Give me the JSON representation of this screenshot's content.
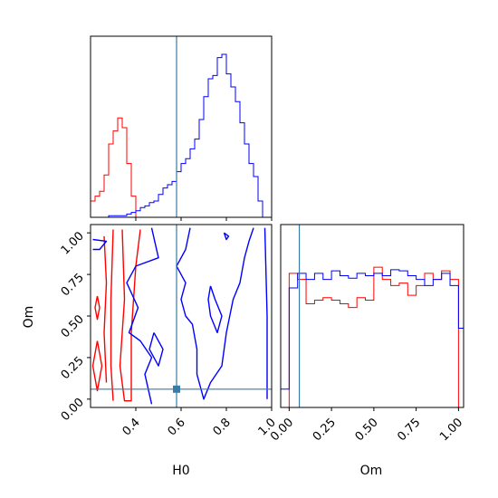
{
  "chart_data": [
    {
      "panel": "H0 marginal histogram",
      "type": "histogram",
      "x_range": [
        0.2,
        1.0
      ],
      "truth_line_x": 0.58,
      "x_ticks": [
        "0.4",
        "0.6",
        "0.8",
        "1.0"
      ],
      "series": [
        {
          "color": "#ff0000",
          "bin_edges": [
            0.2,
            0.22,
            0.24,
            0.26,
            0.28,
            0.3,
            0.32,
            0.34,
            0.36,
            0.38,
            0.4,
            0.42
          ],
          "heights": [
            0.1,
            0.13,
            0.16,
            0.26,
            0.45,
            0.53,
            0.61,
            0.55,
            0.33,
            0.13,
            0.0
          ]
        },
        {
          "color": "#0000ff",
          "bin_edges": [
            0.2,
            0.22,
            0.24,
            0.26,
            0.28,
            0.3,
            0.32,
            0.34,
            0.36,
            0.38,
            0.4,
            0.42,
            0.44,
            0.46,
            0.48,
            0.5,
            0.52,
            0.54,
            0.56,
            0.58,
            0.6,
            0.62,
            0.64,
            0.66,
            0.68,
            0.7,
            0.72,
            0.74,
            0.76,
            0.78,
            0.8,
            0.82,
            0.84,
            0.86,
            0.88,
            0.9,
            0.92,
            0.94,
            0.96
          ],
          "heights": [
            0.0,
            0.0,
            0.0,
            0.0,
            0.01,
            0.01,
            0.01,
            0.01,
            0.02,
            0.03,
            0.04,
            0.06,
            0.07,
            0.09,
            0.1,
            0.14,
            0.18,
            0.2,
            0.22,
            0.28,
            0.33,
            0.36,
            0.42,
            0.48,
            0.6,
            0.74,
            0.85,
            0.87,
            0.98,
            1.0,
            0.88,
            0.8,
            0.71,
            0.58,
            0.45,
            0.33,
            0.25,
            0.1
          ]
        }
      ]
    },
    {
      "panel": "H0 vs Om 2D contours",
      "type": "contour",
      "x_range": [
        0.2,
        1.0
      ],
      "y_range": [
        -0.05,
        1.05
      ],
      "xlabel": "H0",
      "ylabel": "Om",
      "x_ticks": [
        "0.4",
        "0.6",
        "0.8",
        "1.0"
      ],
      "y_ticks": [
        "0.00",
        "0.25",
        "0.50",
        "0.75",
        "1.00"
      ],
      "truth_point": [
        0.58,
        0.06
      ],
      "series": [
        {
          "color": "#ff0000",
          "contours": [
            [
              [
                0.34,
                1.02
              ],
              [
                0.35,
                0.6
              ],
              [
                0.33,
                0.2
              ],
              [
                0.35,
                -0.01
              ],
              [
                0.38,
                -0.01
              ],
              [
                0.38,
                0.4
              ],
              [
                0.4,
                0.8
              ],
              [
                0.42,
                1.02
              ]
            ],
            [
              [
                0.3,
                1.02
              ],
              [
                0.29,
                0.6
              ],
              [
                0.29,
                0.2
              ],
              [
                0.3,
                -0.01
              ]
            ],
            [
              [
                0.26,
                0.98
              ],
              [
                0.27,
                0.7
              ],
              [
                0.26,
                0.4
              ],
              [
                0.27,
                0.1
              ]
            ],
            [
              [
                0.23,
                0.35
              ],
              [
                0.25,
                0.2
              ],
              [
                0.23,
                0.05
              ],
              [
                0.21,
                0.2
              ],
              [
                0.23,
                0.35
              ]
            ],
            [
              [
                0.23,
                0.62
              ],
              [
                0.24,
                0.55
              ],
              [
                0.23,
                0.48
              ],
              [
                0.22,
                0.55
              ],
              [
                0.23,
                0.62
              ]
            ]
          ]
        },
        {
          "color": "#0000ff",
          "contours": [
            [
              [
                0.47,
                1.03
              ],
              [
                0.5,
                0.85
              ],
              [
                0.4,
                0.8
              ],
              [
                0.36,
                0.7
              ],
              [
                0.41,
                0.55
              ],
              [
                0.37,
                0.4
              ],
              [
                0.42,
                0.35
              ],
              [
                0.47,
                0.25
              ],
              [
                0.44,
                0.15
              ],
              [
                0.47,
                -0.03
              ]
            ],
            [
              [
                0.64,
                1.03
              ],
              [
                0.62,
                0.9
              ],
              [
                0.58,
                0.8
              ],
              [
                0.62,
                0.7
              ],
              [
                0.6,
                0.6
              ],
              [
                0.62,
                0.5
              ],
              [
                0.65,
                0.45
              ],
              [
                0.67,
                0.3
              ],
              [
                0.67,
                0.15
              ],
              [
                0.7,
                0.0
              ],
              [
                0.73,
                0.1
              ],
              [
                0.78,
                0.2
              ],
              [
                0.8,
                0.4
              ],
              [
                0.83,
                0.6
              ],
              [
                0.86,
                0.7
              ],
              [
                0.88,
                0.85
              ],
              [
                0.9,
                0.95
              ],
              [
                0.92,
                1.03
              ]
            ],
            [
              [
                0.73,
                0.68
              ],
              [
                0.75,
                0.6
              ],
              [
                0.78,
                0.5
              ],
              [
                0.76,
                0.4
              ],
              [
                0.73,
                0.5
              ],
              [
                0.72,
                0.6
              ],
              [
                0.73,
                0.68
              ]
            ],
            [
              [
                0.48,
                0.4
              ],
              [
                0.52,
                0.3
              ],
              [
                0.5,
                0.2
              ],
              [
                0.46,
                0.3
              ],
              [
                0.48,
                0.4
              ]
            ],
            [
              [
                0.21,
                0.96
              ],
              [
                0.27,
                0.95
              ],
              [
                0.24,
                0.9
              ],
              [
                0.21,
                0.9
              ]
            ],
            [
              [
                0.97,
                1.03
              ],
              [
                0.98,
                0.5
              ],
              [
                0.98,
                0.0
              ]
            ],
            [
              [
                0.79,
                1.0
              ],
              [
                0.81,
                0.98
              ],
              [
                0.8,
                0.96
              ],
              [
                0.79,
                1.0
              ]
            ]
          ]
        }
      ]
    },
    {
      "panel": "Om marginal histogram",
      "type": "histogram",
      "x_range": [
        -0.05,
        1.03
      ],
      "y_range": [
        0,
        1.5
      ],
      "xlabel": "Om",
      "truth_line_x": 0.06,
      "x_ticks": [
        "0.00",
        "0.25",
        "0.50",
        "0.75",
        "1.00"
      ],
      "series": [
        {
          "color": "#ff0000",
          "bin_edges": [
            0.0,
            0.05,
            0.1,
            0.15,
            0.2,
            0.25,
            0.3,
            0.35,
            0.4,
            0.45,
            0.5,
            0.55,
            0.6,
            0.65,
            0.7,
            0.75,
            0.8,
            0.85,
            0.9,
            0.95,
            1.0
          ],
          "heights": [
            1.1,
            1.05,
            0.85,
            0.88,
            0.9,
            0.88,
            0.85,
            0.82,
            0.9,
            0.88,
            1.15,
            1.05,
            1.0,
            1.02,
            0.92,
            1.0,
            1.1,
            1.05,
            1.12,
            1.05
          ]
        },
        {
          "color": "#0000ff",
          "bin_edges": [
            -0.05,
            0.0,
            0.05,
            0.1,
            0.15,
            0.2,
            0.25,
            0.3,
            0.35,
            0.4,
            0.45,
            0.5,
            0.55,
            0.6,
            0.65,
            0.7,
            0.75,
            0.8,
            0.85,
            0.9,
            0.95,
            1.0,
            1.03
          ],
          "heights": [
            0.15,
            0.98,
            1.1,
            1.05,
            1.1,
            1.05,
            1.12,
            1.08,
            1.06,
            1.1,
            1.08,
            1.1,
            1.08,
            1.13,
            1.12,
            1.08,
            1.05,
            1.0,
            1.05,
            1.1,
            1.0,
            0.65
          ]
        }
      ]
    }
  ],
  "labels": {
    "h0_axis_label": "H0",
    "om_axis_label": "Om",
    "om_histogram_axis_label": "Om"
  },
  "colors": {
    "series_a": "#ff0000",
    "series_b": "#0000ff",
    "truth": "#3a7ca8"
  }
}
